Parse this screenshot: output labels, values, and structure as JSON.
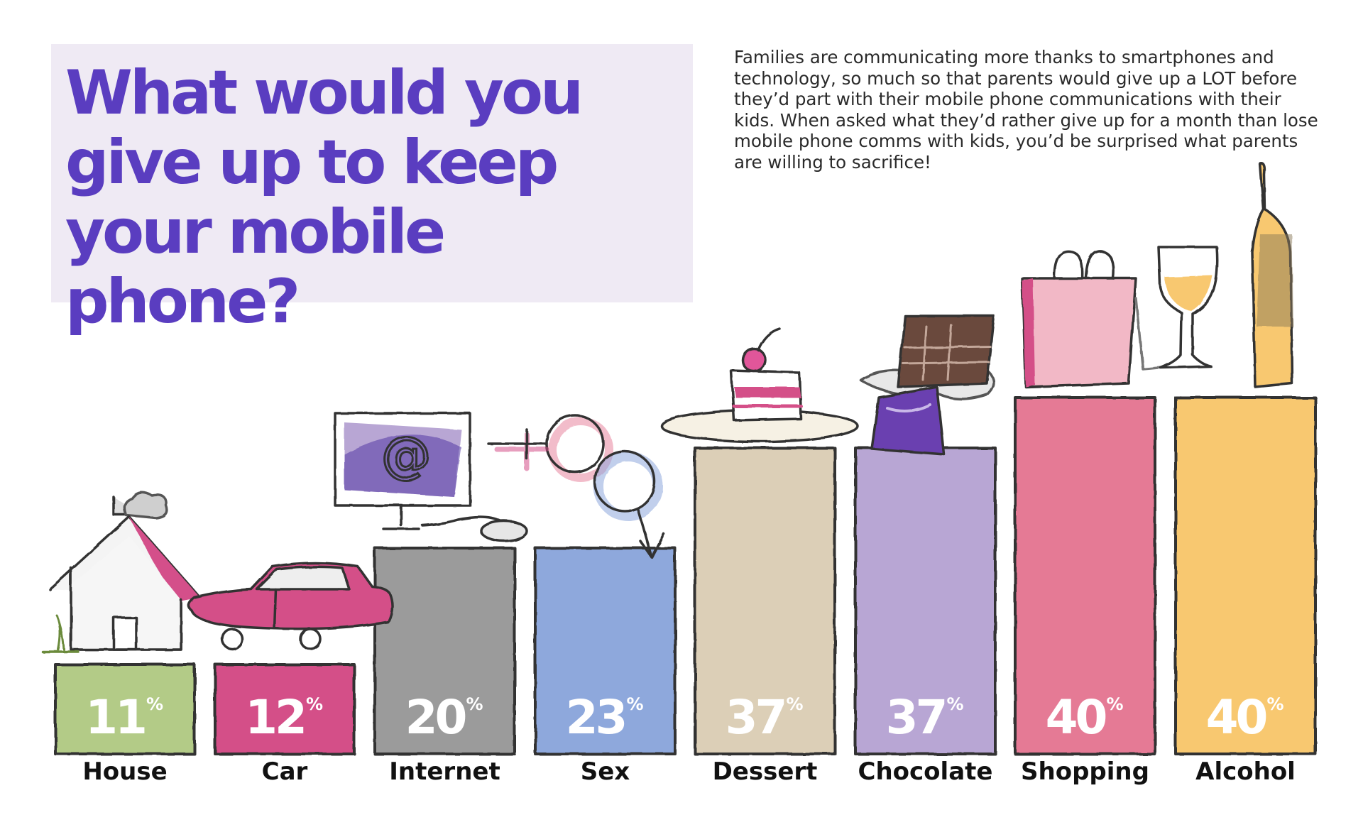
{
  "title": "What would you give up to keep your mobile phone?",
  "intro": "Families are communicating more thanks to smartphones and technology, so much so that parents would give up a LOT before they’d part with their mobile phone communications with their kids. When asked what they’d rather give up for a month than lose mobile phone comms with kids, you’d be surprised what parents are willing to sacrifice!",
  "chart_data": {
    "type": "bar",
    "title": "What would you give up to keep your mobile phone?",
    "categories": [
      "House",
      "Car",
      "Internet",
      "Sex",
      "Dessert",
      "Chocolate",
      "Shopping",
      "Alcohol"
    ],
    "values": [
      11,
      12,
      20,
      23,
      37,
      37,
      40,
      40
    ],
    "value_labels": [
      "11",
      "12",
      "20",
      "23",
      "37",
      "37",
      "40",
      "40"
    ],
    "unit_label": "%",
    "colors": [
      "#b3cb87",
      "#d44f88",
      "#9b9b9b",
      "#8ea8dc",
      "#dccfb7",
      "#b8a6d4",
      "#e57a95",
      "#f8c86f"
    ],
    "icons": [
      "house-icon",
      "car-icon",
      "computer-icon",
      "gender-symbols-icon",
      "cake-icon",
      "chocolate-bar-icon",
      "shopping-bag-icon",
      "wine-bottle-glass-icon"
    ],
    "ylim": [
      0,
      40
    ]
  }
}
